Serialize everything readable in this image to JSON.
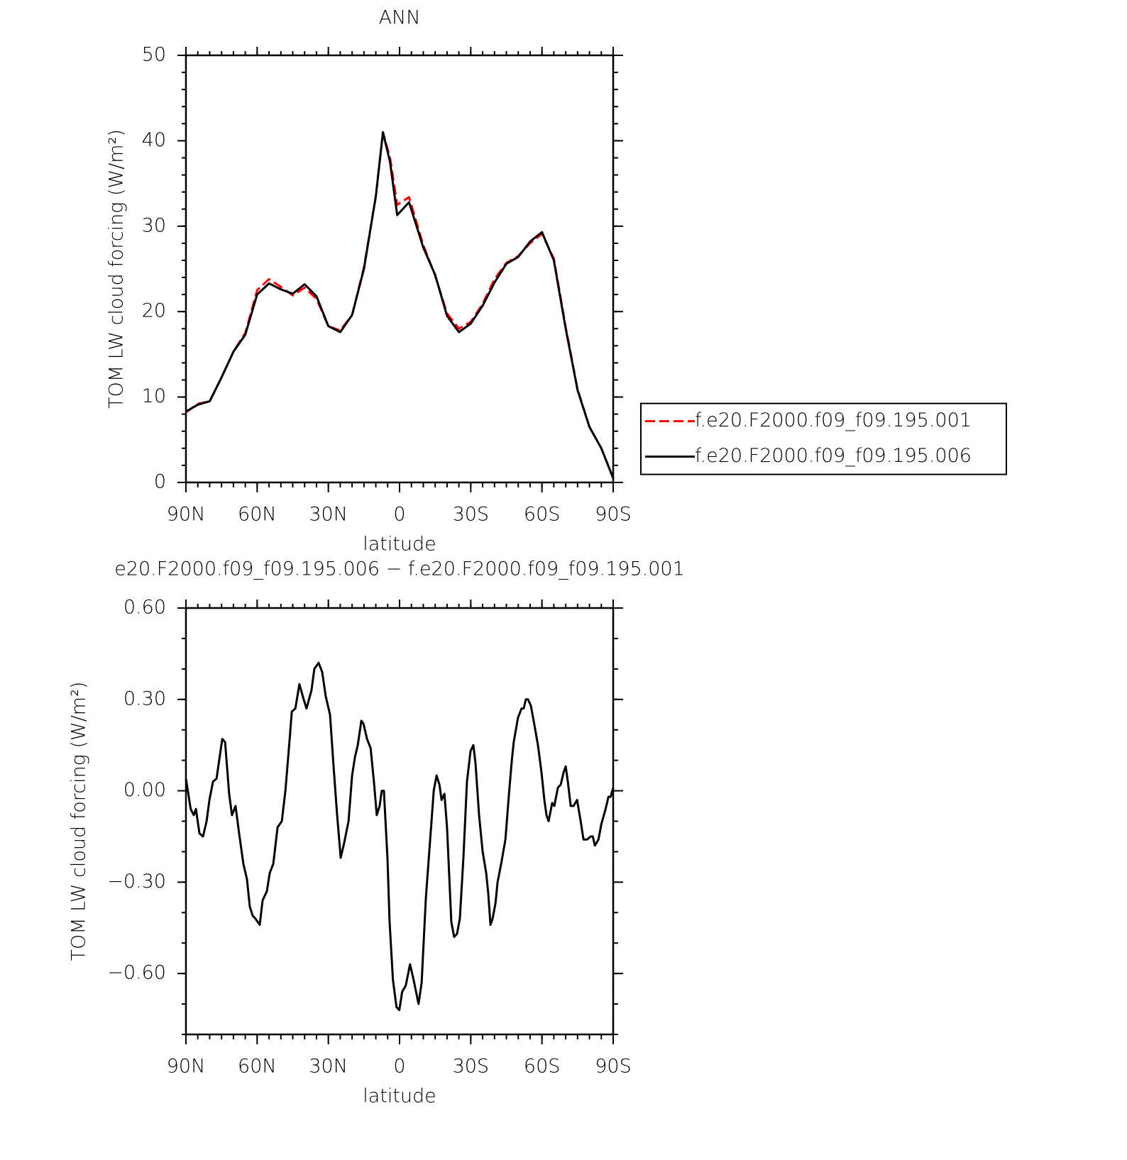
{
  "chart_data": [
    {
      "type": "line",
      "title": "ANN",
      "xlabel": "latitude",
      "ylabel": "TOM LW cloud forcing (W/m²)",
      "x": [
        90,
        85,
        80,
        75,
        70,
        65,
        60,
        55,
        50,
        45,
        40,
        35,
        30,
        25,
        20,
        15,
        10,
        7,
        4,
        1,
        -4,
        -10,
        -15,
        -20,
        -25,
        -30,
        -35,
        -40,
        -45,
        -50,
        -55,
        -60,
        -65,
        -70,
        -75,
        -80,
        -85,
        -90
      ],
      "series": [
        {
          "name": "f.e20.F2000.f09_f09.195.001",
          "color": "#ff0000",
          "style": "dashed",
          "values": [
            8.2,
            9.2,
            9.5,
            12.3,
            15.3,
            17.5,
            22.5,
            23.8,
            22.9,
            21.9,
            22.8,
            21.5,
            18.3,
            17.8,
            19.6,
            25.2,
            33.5,
            41.0,
            38.0,
            32.5,
            33.4,
            27.8,
            24.2,
            19.8,
            18.0,
            18.8,
            20.9,
            23.8,
            25.7,
            26.5,
            28.0,
            29.1,
            26.2,
            18.2,
            10.9,
            6.5,
            4.0,
            0.5
          ]
        },
        {
          "name": "f.e20.F2000.f09_f09.195.006",
          "color": "#000000",
          "style": "solid",
          "values": [
            8.3,
            9.1,
            9.5,
            12.3,
            15.3,
            17.3,
            22.0,
            23.3,
            22.6,
            22.1,
            23.2,
            21.8,
            18.3,
            17.6,
            19.6,
            25.0,
            33.5,
            41.0,
            37.5,
            31.3,
            32.8,
            27.5,
            24.3,
            19.5,
            17.6,
            18.6,
            20.7,
            23.4,
            25.6,
            26.4,
            28.2,
            29.3,
            26.0,
            18.0,
            10.8,
            6.5,
            4.0,
            0.5
          ]
        }
      ],
      "xlim": [
        90,
        -90
      ],
      "xticks": [
        {
          "value": 90,
          "label": "90N"
        },
        {
          "value": 60,
          "label": "60N"
        },
        {
          "value": 30,
          "label": "30N"
        },
        0,
        {
          "value": -30,
          "label": "30S"
        },
        {
          "value": -60,
          "label": "60S"
        },
        {
          "value": -90,
          "label": "90S"
        }
      ],
      "ylim": [
        0,
        50
      ],
      "yticks": [
        0,
        10,
        20,
        30,
        40,
        50
      ],
      "x_minor_per_major": 6,
      "y_minor_per_major": 5,
      "legend": "right"
    },
    {
      "type": "line",
      "title": "e20.F2000.f09_f09.195.006 − f.e20.F2000.f09_f09.195.001",
      "xlabel": "latitude",
      "ylabel": "TOM LW cloud forcing (W/m²)",
      "x": [
        90,
        88,
        86.7,
        85.8,
        84.3,
        82.8,
        81.3,
        80.1,
        78.6,
        77.1,
        74.7,
        73.5,
        71.8,
        70.6,
        69.1,
        67.6,
        65.8,
        64.3,
        63.1,
        61.9,
        60.7,
        58.9,
        57.7,
        55.9,
        54.7,
        53.2,
        51.4,
        49.6,
        48.1,
        46.3,
        45.4,
        43.9,
        42.2,
        40.4,
        39.2,
        37.1,
        35.9,
        34.1,
        32.6,
        31.1,
        29.3,
        27.8,
        26.3,
        24.8,
        23.3,
        21.5,
        20,
        18.8,
        17.6,
        16.1,
        15.2,
        13.7,
        12.2,
        10.8,
        9.6,
        8.4,
        7.5,
        6.6,
        5.1,
        4.2,
        2.8,
        1.3,
        0.1,
        -1.1,
        -2.6,
        -4.4,
        -5.9,
        -8,
        -9.3,
        -11.1,
        -12.9,
        -14.4,
        -15.6,
        -16.8,
        -17.7,
        -18.9,
        -20,
        -21.8,
        -23,
        -24.2,
        -25.4,
        -26.9,
        -28.4,
        -29.9,
        -31.1,
        -32,
        -33.5,
        -35,
        -36.5,
        -37.4,
        -38.3,
        -39.2,
        -40.4,
        -41.3,
        -42.8,
        -44.6,
        -46.1,
        -47.3,
        -48.1,
        -49.9,
        -51.4,
        -52.3,
        -53.2,
        -54.1,
        -55.3,
        -56.5,
        -58.3,
        -59.8,
        -61,
        -61.9,
        -62.8,
        -64.3,
        -65.2,
        -66.7,
        -67.9,
        -69.1,
        -70,
        -70.9,
        -72.1,
        -73.3,
        -74.8,
        -76.3,
        -77.5,
        -79,
        -80.5,
        -81.4,
        -82.3,
        -83.8,
        -85,
        -86.8,
        -88,
        -88.9,
        -90
      ],
      "series": [
        {
          "color": "#000000",
          "style": "solid",
          "values": [
            0.04,
            -0.06,
            -0.08,
            -0.06,
            -0.14,
            -0.15,
            -0.1,
            -0.03,
            0.03,
            0.04,
            0.17,
            0.16,
            -0.01,
            -0.08,
            -0.05,
            -0.14,
            -0.24,
            -0.29,
            -0.38,
            -0.41,
            -0.42,
            -0.44,
            -0.36,
            -0.33,
            -0.27,
            -0.24,
            -0.12,
            -0.1,
            0.0,
            0.17,
            0.26,
            0.27,
            0.35,
            0.3,
            0.27,
            0.33,
            0.4,
            0.42,
            0.39,
            0.31,
            0.25,
            0.08,
            -0.08,
            -0.22,
            -0.17,
            -0.1,
            0.05,
            0.11,
            0.15,
            0.23,
            0.22,
            0.17,
            0.14,
            0.03,
            -0.08,
            -0.05,
            0.0,
            0.0,
            -0.22,
            -0.43,
            -0.62,
            -0.71,
            -0.72,
            -0.66,
            -0.64,
            -0.57,
            -0.62,
            -0.7,
            -0.63,
            -0.35,
            -0.16,
            0.0,
            0.05,
            0.02,
            -0.03,
            -0.01,
            -0.12,
            -0.43,
            -0.48,
            -0.47,
            -0.42,
            -0.22,
            0.03,
            0.13,
            0.15,
            0.09,
            -0.08,
            -0.2,
            -0.27,
            -0.34,
            -0.44,
            -0.42,
            -0.37,
            -0.3,
            -0.24,
            -0.16,
            -0.01,
            0.1,
            0.16,
            0.24,
            0.27,
            0.27,
            0.3,
            0.3,
            0.28,
            0.23,
            0.15,
            0.06,
            -0.03,
            -0.08,
            -0.1,
            -0.04,
            -0.05,
            0.01,
            0.02,
            0.06,
            0.08,
            0.03,
            -0.05,
            -0.05,
            -0.03,
            -0.1,
            -0.16,
            -0.16,
            -0.15,
            -0.15,
            -0.18,
            -0.16,
            -0.11,
            -0.06,
            -0.02,
            -0.02,
            0.01
          ]
        }
      ],
      "xlim": [
        90,
        -90
      ],
      "xticks": [
        {
          "value": 90,
          "label": "90N"
        },
        {
          "value": 60,
          "label": "60N"
        },
        {
          "value": 30,
          "label": "30N"
        },
        0,
        {
          "value": -30,
          "label": "30S"
        },
        {
          "value": -60,
          "label": "60S"
        },
        {
          "value": -90,
          "label": "90S"
        }
      ],
      "ylim": [
        -0.8,
        0.6
      ],
      "yticks": [
        {
          "value": -0.6,
          "label": "−0.60"
        },
        {
          "value": -0.3,
          "label": "−0.30"
        },
        {
          "value": 0,
          "label": "0.00"
        },
        {
          "value": 0.3,
          "label": "0.30"
        },
        {
          "value": 0.6,
          "label": "0.60"
        }
      ],
      "x_minor_per_major": 6,
      "y_minor_per_major": 3
    }
  ]
}
